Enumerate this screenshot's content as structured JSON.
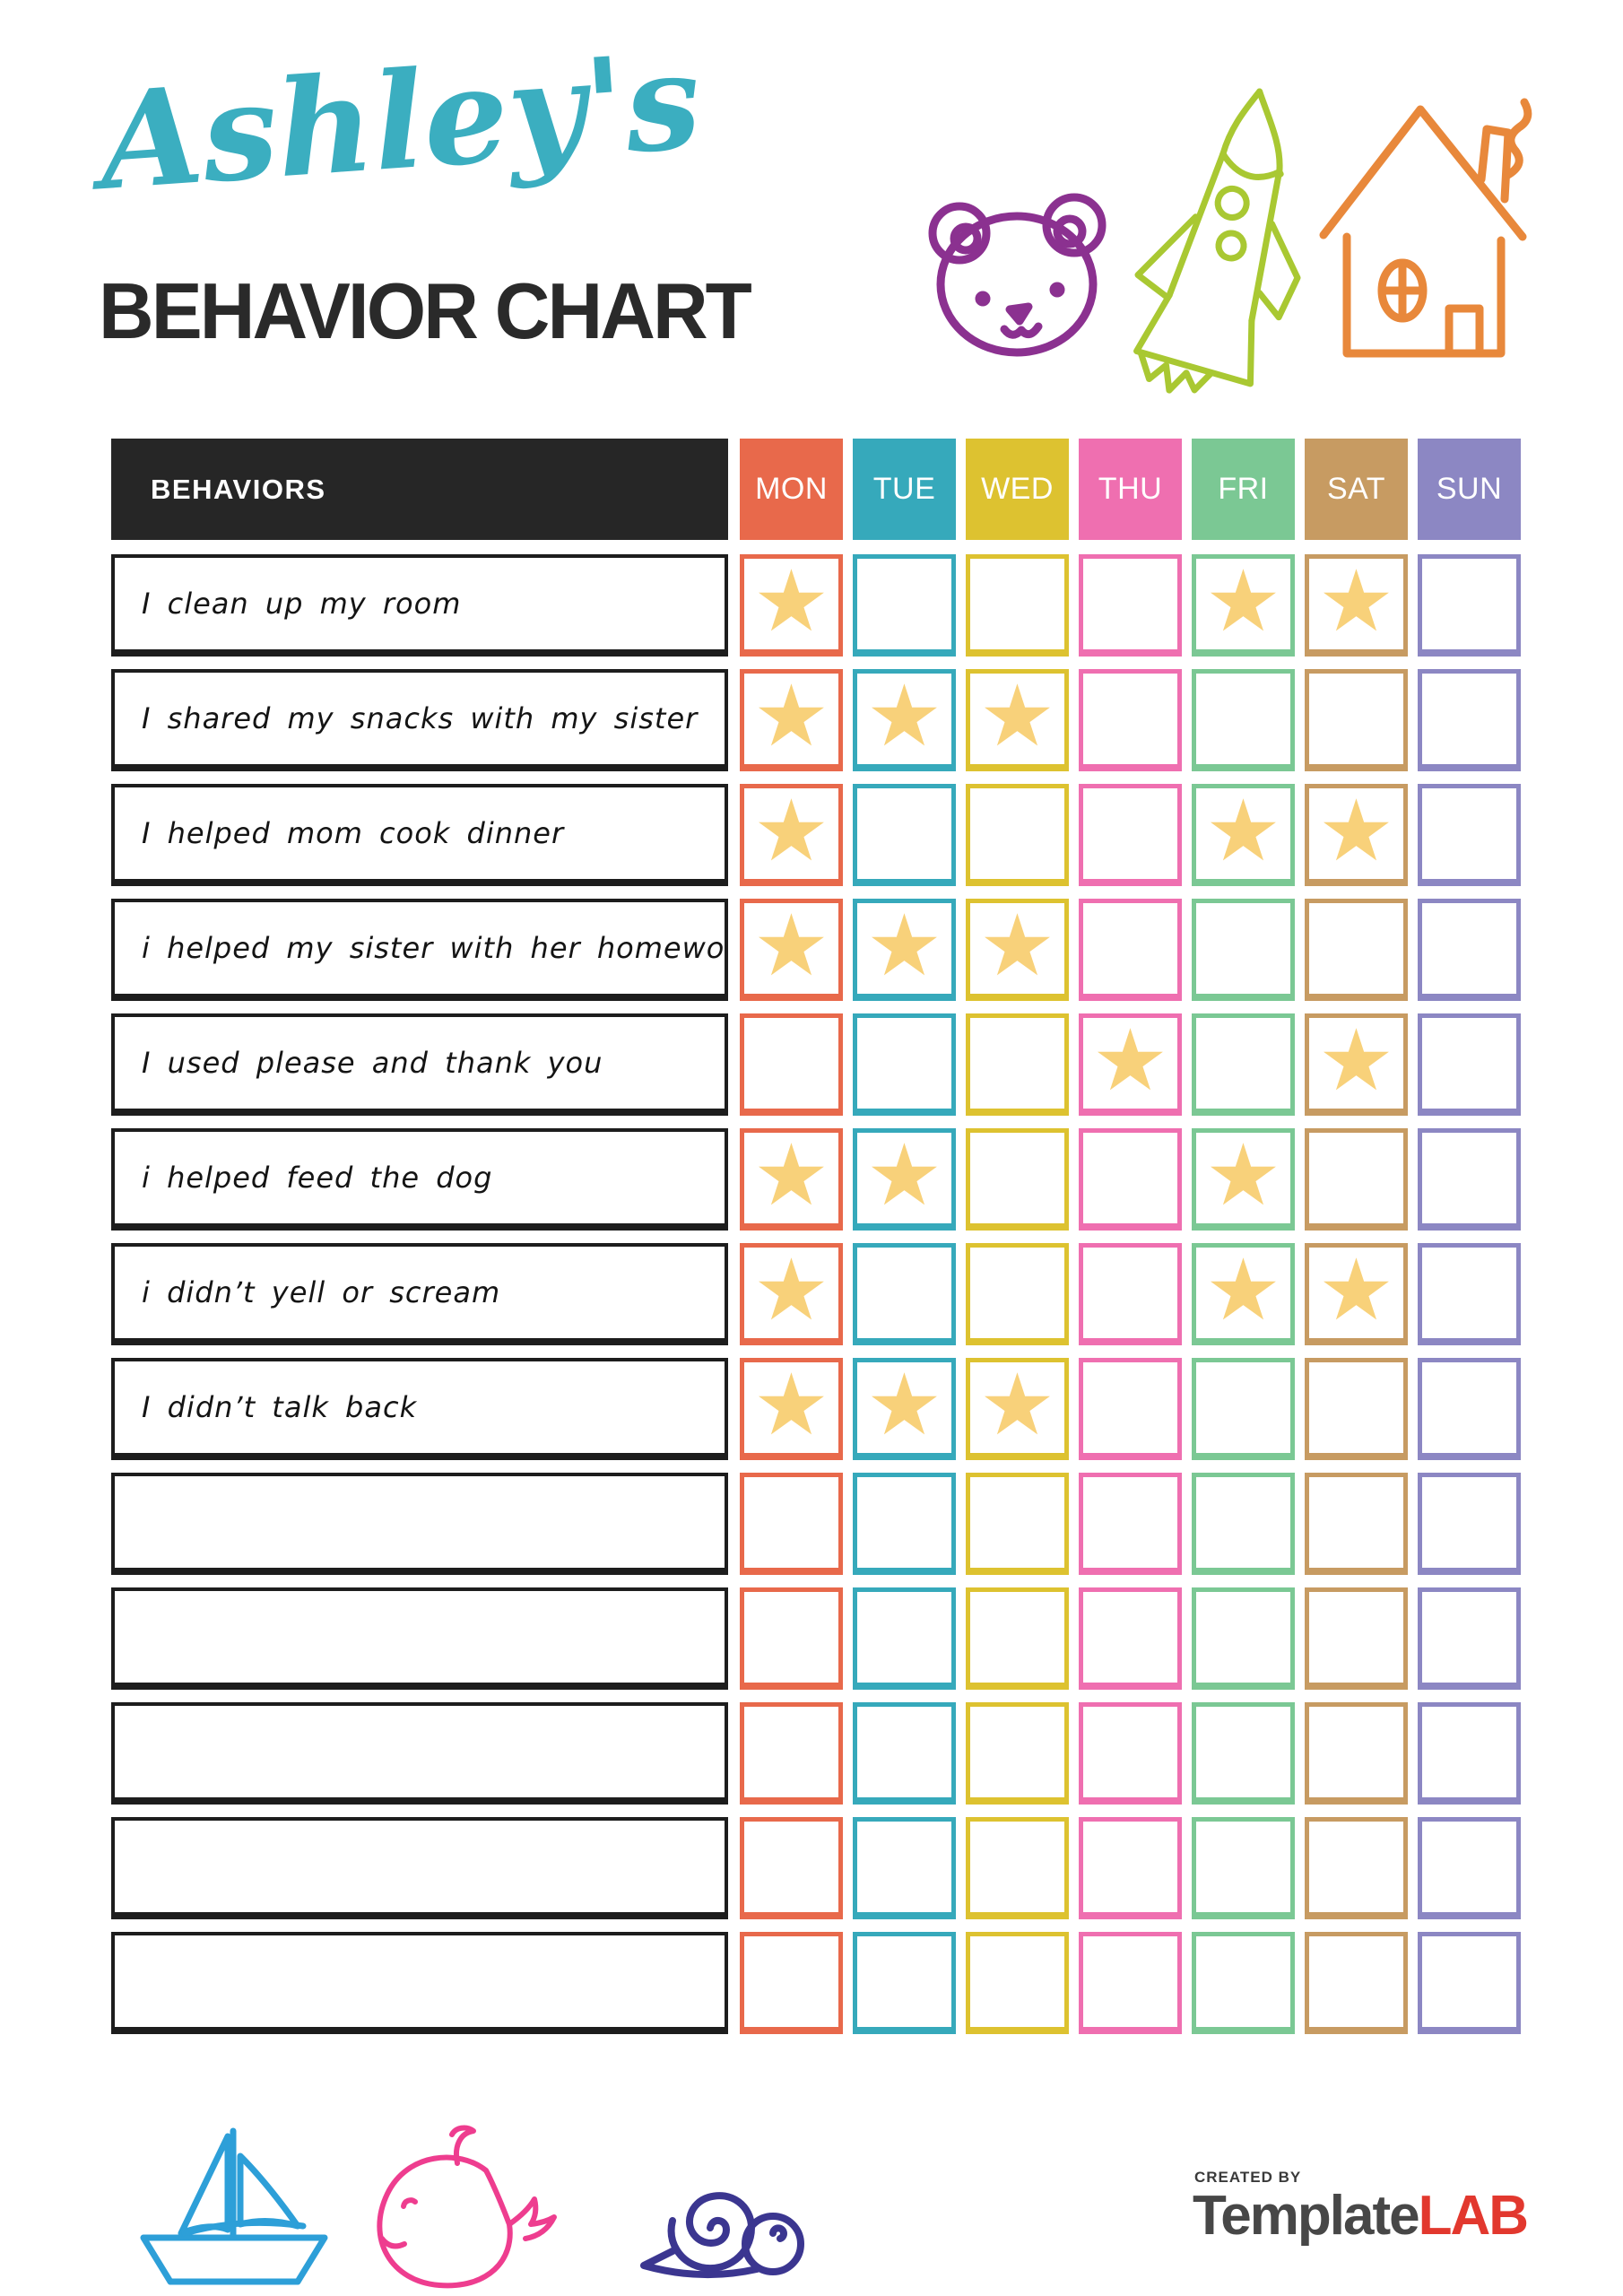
{
  "header": {
    "name_script": "Ashley's",
    "title": "BEHAVIOR CHART"
  },
  "decorations": {
    "top_icons": [
      "bear-icon",
      "rocket-icon",
      "house-icon"
    ],
    "bottom_icons": [
      "sailboat-icon",
      "whale-icon",
      "snail-icon"
    ]
  },
  "table": {
    "behaviors_label": "BEHAVIORS",
    "star_glyph": "★",
    "days": [
      {
        "label": "MON",
        "color": "#E8694B"
      },
      {
        "label": "TUE",
        "color": "#36A9BB"
      },
      {
        "label": "WED",
        "color": "#DDC230"
      },
      {
        "label": "THU",
        "color": "#EF6FB0"
      },
      {
        "label": "FRI",
        "color": "#7BC894"
      },
      {
        "label": "SAT",
        "color": "#C79B62"
      },
      {
        "label": "SUN",
        "color": "#8C87C3"
      }
    ],
    "rows": [
      {
        "label": "I clean up my room",
        "stars": [
          "MON",
          "FRI",
          "SAT"
        ]
      },
      {
        "label": "I shared my snacks with my sister",
        "stars": [
          "MON",
          "TUE",
          "WED"
        ]
      },
      {
        "label": "I helped mom cook dinner",
        "stars": [
          "MON",
          "FRI",
          "SAT"
        ]
      },
      {
        "label": "i helped my sister with her homework",
        "stars": [
          "MON",
          "TUE",
          "WED"
        ]
      },
      {
        "label": "I used please and thank you",
        "stars": [
          "THU",
          "SAT"
        ]
      },
      {
        "label": "i helped feed the dog",
        "stars": [
          "MON",
          "TUE",
          "FRI"
        ]
      },
      {
        "label": "i didn’t yell or scream",
        "stars": [
          "MON",
          "FRI",
          "SAT"
        ]
      },
      {
        "label": "I didn’t talk back",
        "stars": [
          "MON",
          "TUE",
          "WED"
        ]
      },
      {
        "label": "",
        "stars": []
      },
      {
        "label": "",
        "stars": []
      },
      {
        "label": "",
        "stars": []
      },
      {
        "label": "",
        "stars": []
      },
      {
        "label": "",
        "stars": []
      }
    ]
  },
  "footer": {
    "created_by": "CREATED BY",
    "brand_dark": "Template",
    "brand_red": "LAB"
  },
  "colors": {
    "title_script": "#3BAEC0",
    "title_text": "#2A2A2A",
    "header_bg": "#262626",
    "row_border": "#1D1D1D",
    "star": "#F8D17A",
    "bear": "#8B3190",
    "rocket": "#A9C832",
    "house": "#E8883B",
    "sailboat": "#2D9FD8",
    "whale": "#EE3D8F",
    "snail": "#3B3690",
    "brand_dark": "#474747",
    "brand_red": "#E2382E"
  }
}
